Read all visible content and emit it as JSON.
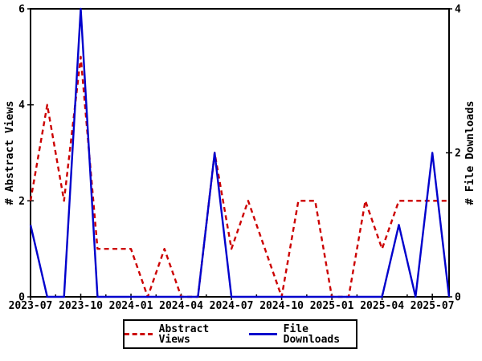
{
  "chart_data": {
    "type": "line",
    "x": [
      "2023-07",
      "2023-08",
      "2023-09",
      "2023-10",
      "2023-11",
      "2023-12",
      "2024-01",
      "2024-02",
      "2024-03",
      "2024-04",
      "2024-05",
      "2024-06",
      "2024-07",
      "2024-08",
      "2024-09",
      "2024-10",
      "2024-11",
      "2024-12",
      "2025-01",
      "2025-02",
      "2025-03",
      "2025-04",
      "2025-05",
      "2025-06",
      "2025-07",
      "2025-08"
    ],
    "series": [
      {
        "name": "Abstract Views",
        "axis": "left",
        "color": "#cc0000",
        "style": "dashed",
        "values": [
          2,
          4,
          2,
          5,
          1,
          1,
          1,
          0,
          1,
          0,
          0,
          3,
          1,
          2,
          1,
          0,
          2,
          2,
          0,
          0,
          2,
          1,
          2,
          2,
          2,
          2
        ]
      },
      {
        "name": "File Downloads",
        "axis": "right",
        "color": "#0000cc",
        "style": "solid",
        "values": [
          1,
          0,
          0,
          4,
          0,
          0,
          0,
          0,
          0,
          0,
          0,
          2,
          0,
          0,
          0,
          0,
          0,
          0,
          0,
          0,
          0,
          0,
          1,
          0,
          2,
          0
        ]
      }
    ],
    "ylabel_left": "# Abstract Views",
    "ylabel_right": "# File Downloads",
    "ylim_left": [
      0,
      6
    ],
    "yticks_left": [
      0,
      2,
      4,
      6
    ],
    "ylim_right": [
      0,
      4
    ],
    "yticks_right": [
      0,
      2,
      4
    ],
    "xtick_labels": [
      "2023-07",
      "2023-10",
      "2024-01",
      "2024-04",
      "2024-07",
      "2024-10",
      "2025-01",
      "2025-04",
      "2025-07"
    ],
    "grid": false,
    "legend_position": "bottom-center",
    "background": "#ffffff",
    "border_color": "#000000"
  }
}
